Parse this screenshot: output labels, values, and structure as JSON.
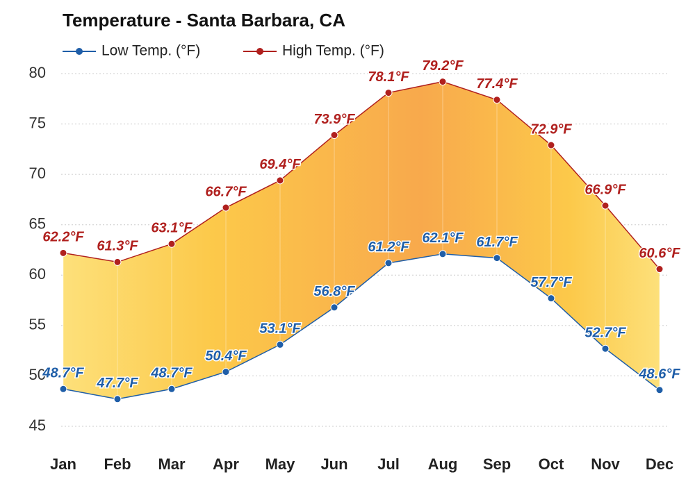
{
  "chart_data": {
    "type": "line",
    "title": "Temperature - Santa Barbara, CA",
    "categories": [
      "Jan",
      "Feb",
      "Mar",
      "Apr",
      "May",
      "Jun",
      "Jul",
      "Aug",
      "Sep",
      "Oct",
      "Nov",
      "Dec"
    ],
    "series": [
      {
        "name": "Low Temp. (°F)",
        "color": "#1f5ea8",
        "values": [
          48.7,
          47.7,
          48.7,
          50.4,
          53.1,
          56.8,
          61.2,
          62.1,
          61.7,
          57.7,
          52.7,
          48.6
        ],
        "value_labels": [
          "48.7°F",
          "47.7°F",
          "48.7°F",
          "50.4°F",
          "53.1°F",
          "56.8°F",
          "61.2°F",
          "62.1°F",
          "61.7°F",
          "57.7°F",
          "52.7°F",
          "48.6°F"
        ]
      },
      {
        "name": "High Temp. (°F)",
        "color": "#b0201e",
        "values": [
          62.2,
          61.3,
          63.1,
          66.7,
          69.4,
          73.9,
          78.1,
          79.2,
          77.4,
          72.9,
          66.9,
          60.6
        ],
        "value_labels": [
          "62.2°F",
          "61.3°F",
          "63.1°F",
          "66.7°F",
          "69.4°F",
          "73.9°F",
          "78.1°F",
          "79.2°F",
          "77.4°F",
          "72.9°F",
          "66.9°F",
          "60.6°F"
        ]
      }
    ],
    "ylim": [
      43,
      80
    ],
    "yticks": [
      45,
      50,
      55,
      60,
      65,
      70,
      75,
      80
    ],
    "grid": true
  }
}
